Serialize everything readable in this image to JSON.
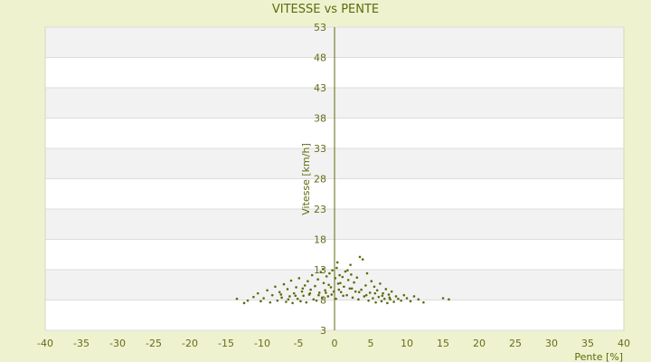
{
  "chart_data": {
    "type": "scatter",
    "title": "VITESSE vs PENTE",
    "xlabel": "Pente [%]",
    "ylabel": "Vitesse [km/h]",
    "xlim": [
      -40,
      40
    ],
    "ylim": [
      3,
      53
    ],
    "xticks": [
      -40,
      -35,
      -30,
      -25,
      -20,
      -15,
      -10,
      -5,
      0,
      5,
      10,
      15,
      20,
      25,
      30,
      35,
      40
    ],
    "yticks": [
      3,
      8,
      13,
      18,
      23,
      28,
      33,
      38,
      43,
      48,
      53
    ],
    "grid": true,
    "legend": "none",
    "colors": {
      "point": "#5e6a0c",
      "axis": "#5e6a0c",
      "band_light": "#ffffff",
      "band_dark": "#f2f2f2",
      "background": "#eef2cf"
    },
    "series": [
      {
        "points": [
          [
            -13.5,
            8.2
          ],
          [
            -12.5,
            7.5
          ],
          [
            -12,
            7.9
          ],
          [
            -11.2,
            8.5
          ],
          [
            -10.6,
            9.1
          ],
          [
            -10.2,
            7.8
          ],
          [
            -9.8,
            8.3
          ],
          [
            -9.3,
            9.6
          ],
          [
            -8.9,
            7.6
          ],
          [
            -8.6,
            8.8
          ],
          [
            -8.2,
            10.2
          ],
          [
            -7.9,
            7.9
          ],
          [
            -7.6,
            9.3
          ],
          [
            -7.3,
            8.4
          ],
          [
            -7,
            10.6
          ],
          [
            -6.7,
            7.7
          ],
          [
            -6.5,
            9.8
          ],
          [
            -6.2,
            8.6
          ],
          [
            -6,
            11.2
          ],
          [
            -5.8,
            7.5
          ],
          [
            -5.6,
            9.1
          ],
          [
            -5.3,
            10.1
          ],
          [
            -5.1,
            8.2
          ],
          [
            -4.9,
            11.6
          ],
          [
            -4.7,
            7.8
          ],
          [
            -4.5,
            9.4
          ],
          [
            -4.3,
            8.7
          ],
          [
            -4.1,
            10.4
          ],
          [
            -3.9,
            7.6
          ],
          [
            -3.7,
            11.1
          ],
          [
            -3.5,
            8.9
          ],
          [
            -3.3,
            9.7
          ],
          [
            -3.1,
            12.1
          ],
          [
            -2.9,
            8.1
          ],
          [
            -2.7,
            10.3
          ],
          [
            -2.5,
            7.9
          ],
          [
            -2.3,
            11.4
          ],
          [
            -2.1,
            9.2
          ],
          [
            -1.9,
            12.6
          ],
          [
            -1.7,
            8.4
          ],
          [
            -1.5,
            10.8
          ],
          [
            -1.3,
            9.6
          ],
          [
            -1.1,
            11.9
          ],
          [
            -0.9,
            8.6
          ],
          [
            -0.7,
            12.4
          ],
          [
            -0.5,
            10.1
          ],
          [
            -0.3,
            12.9
          ],
          [
            -0.1,
            9.4
          ],
          [
            0.1,
            11.6
          ],
          [
            0.3,
            13.3
          ],
          [
            0.5,
            10.7
          ],
          [
            0.7,
            12.1
          ],
          [
            0.9,
            9.3
          ],
          [
            1.1,
            11.8
          ],
          [
            1.3,
            10.2
          ],
          [
            1.5,
            12.7
          ],
          [
            1.7,
            8.8
          ],
          [
            1.9,
            11.3
          ],
          [
            2.1,
            9.9
          ],
          [
            2.3,
            12.2
          ],
          [
            2.5,
            8.4
          ],
          [
            2.7,
            10.9
          ],
          [
            2.9,
            9.4
          ],
          [
            3.1,
            11.7
          ],
          [
            3.3,
            8.1
          ],
          [
            3.5,
            15.1
          ],
          [
            3.7,
            9.7
          ],
          [
            3.9,
            14.7
          ],
          [
            4.1,
            8.6
          ],
          [
            4.3,
            10.4
          ],
          [
            4.5,
            12.4
          ],
          [
            4.7,
            7.9
          ],
          [
            4.9,
            9.2
          ],
          [
            5.1,
            11.1
          ],
          [
            5.3,
            8.3
          ],
          [
            5.5,
            10.2
          ],
          [
            5.7,
            7.6
          ],
          [
            5.9,
            9.6
          ],
          [
            6.1,
            8.5
          ],
          [
            6.3,
            10.7
          ],
          [
            6.5,
            7.8
          ],
          [
            6.7,
            9.1
          ],
          [
            6.9,
            8.2
          ],
          [
            7.1,
            9.8
          ],
          [
            7.3,
            7.5
          ],
          [
            7.5,
            8.9
          ],
          [
            7.7,
            8.1
          ],
          [
            7.9,
            9.4
          ],
          [
            8.2,
            7.7
          ],
          [
            8.5,
            8.6
          ],
          [
            8.8,
            8.2
          ],
          [
            9.2,
            7.9
          ],
          [
            9.6,
            8.8
          ],
          [
            10,
            8.3
          ],
          [
            10.5,
            7.8
          ],
          [
            11,
            8.6
          ],
          [
            11.6,
            8.1
          ],
          [
            12.3,
            7.6
          ],
          [
            15,
            8.3
          ],
          [
            15.8,
            8.1
          ],
          [
            -1.2,
            9.2
          ],
          [
            1.2,
            8.7
          ],
          [
            -2.2,
            8.8
          ],
          [
            2.4,
            9.9
          ],
          [
            -3.4,
            9.1
          ],
          [
            3.4,
            9.3
          ],
          [
            0.2,
            8.2
          ],
          [
            -0.4,
            8.9
          ],
          [
            0.6,
            9.7
          ],
          [
            -0.8,
            10.5
          ],
          [
            0.8,
            10.8
          ],
          [
            -4.4,
            9.9
          ],
          [
            4.4,
            8.8
          ],
          [
            -5.4,
            8.7
          ],
          [
            5.6,
            9.1
          ],
          [
            -6.4,
            8.1
          ],
          [
            6.6,
            8.7
          ],
          [
            -7.4,
            8.9
          ],
          [
            7.6,
            8.4
          ],
          [
            1.8,
            12.9
          ],
          [
            -1.6,
            13.1
          ],
          [
            0.4,
            14.2
          ],
          [
            2.2,
            13.8
          ]
        ]
      }
    ]
  }
}
